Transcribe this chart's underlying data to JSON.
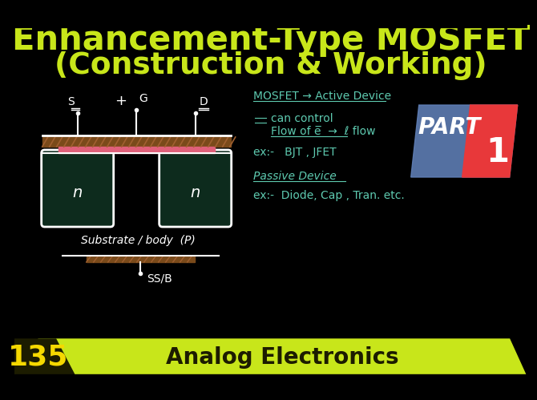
{
  "bg_color": "#0d2b1d",
  "black": "#000000",
  "title_line1": "Enhancement-Type MOSFET",
  "title_line2": "(Construction & Working)",
  "title_color": "#c8e61a",
  "title_fs1": 30,
  "title_fs2": 27,
  "bottom_bar_green": "#c8e61a",
  "bottom_bar_dark": "#1c1c00",
  "bottom_number": "135",
  "bottom_text": "Analog Electronics",
  "bottom_number_color": "#f5d800",
  "part_text": "PART",
  "part_number": "1",
  "part_bg_red": "#e8383a",
  "part_bg_blue": "#6080b8",
  "notes_color": "#5ecab0",
  "white": "#ffffff",
  "pink": "#e0607a",
  "brown_hatch": "#7a4a1a",
  "substrate_label": "Substrate / body  (P)",
  "ss_label": "SS/B",
  "s_label": "S",
  "g_label": "G",
  "d_label": "D",
  "n_label": "n",
  "mosfet_label": "MOSFET → Active Device",
  "note_can": "can control",
  "note_flow": "Flow of e̅  →  ℓ flow",
  "note_bjt": "ex:-   BJT , JFET",
  "passive_label": "Passive Device",
  "note_passive": "ex:-  Diode, Cap , Tran. etc."
}
